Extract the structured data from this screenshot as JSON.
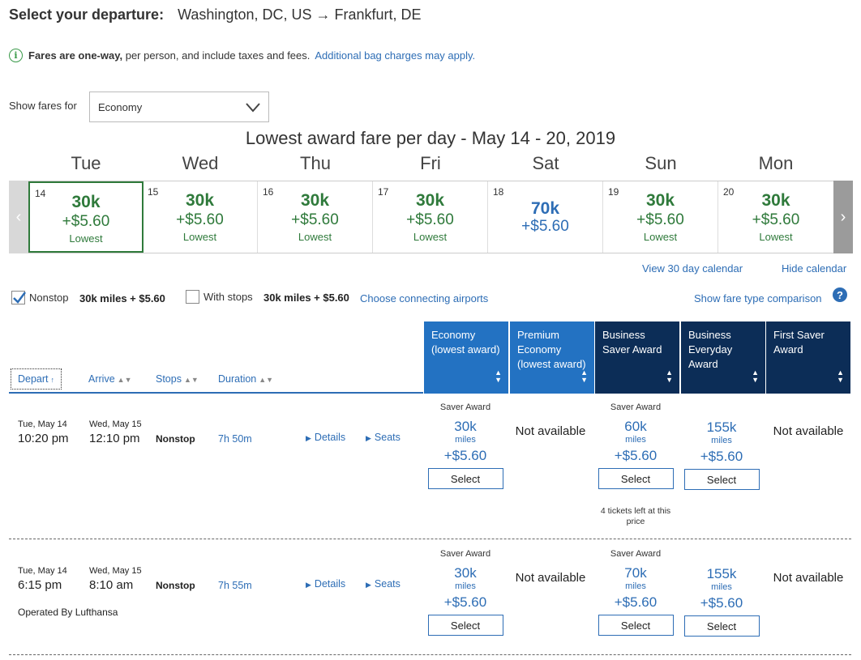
{
  "header": {
    "label": "Select your departure:",
    "route": "Washington, DC, US → Frankfurt, DE"
  },
  "notice": {
    "bold": "Fares are one-way,",
    "text": "per person, and include taxes and fees.",
    "link": "Additional bag charges may apply."
  },
  "fare_filter": {
    "label": "Show fares for",
    "value": "Economy"
  },
  "calendar": {
    "title": "Lowest award fare per day - May 14 - 20, 2019",
    "days": [
      {
        "dow": "Tue",
        "date": "14",
        "miles": "30k",
        "tax": "+$5.60",
        "note": "Lowest"
      },
      {
        "dow": "Wed",
        "date": "15",
        "miles": "30k",
        "tax": "+$5.60",
        "note": "Lowest"
      },
      {
        "dow": "Thu",
        "date": "16",
        "miles": "30k",
        "tax": "+$5.60",
        "note": "Lowest"
      },
      {
        "dow": "Fri",
        "date": "17",
        "miles": "30k",
        "tax": "+$5.60",
        "note": "Lowest"
      },
      {
        "dow": "Sat",
        "date": "18",
        "miles": "70k",
        "tax": "+$5.60",
        "note": ""
      },
      {
        "dow": "Sun",
        "date": "19",
        "miles": "30k",
        "tax": "+$5.60",
        "note": "Lowest"
      },
      {
        "dow": "Mon",
        "date": "20",
        "miles": "30k",
        "tax": "+$5.60",
        "note": "Lowest"
      }
    ],
    "view30": "View 30 day calendar",
    "hide": "Hide calendar"
  },
  "filters": {
    "nonstop_label": "Nonstop",
    "nonstop_price": "30k miles + $5.60",
    "stops_label": "With stops",
    "stops_price": "30k miles + $5.60",
    "connecting": "Choose connecting airports",
    "comparison": "Show fare type comparison"
  },
  "fare_columns": [
    "Economy (lowest award)",
    "Premium Economy (lowest award)",
    "Business Saver Award",
    "Business Everyday Award",
    "First Saver Award"
  ],
  "sort": {
    "depart": "Depart",
    "arrive": "Arrive",
    "stops": "Stops",
    "duration": "Duration"
  },
  "flights": [
    {
      "dep_date": "Tue, May 14",
      "dep_time": "10:20 pm",
      "arr_date": "Wed, May 15",
      "arr_time": "12:10 pm",
      "stops": "Nonstop",
      "duration": "7h 50m",
      "details": "Details",
      "seats": "Seats",
      "operated": "",
      "econ": {
        "tag": "Saver Award",
        "miles": "30k",
        "unit": "miles",
        "tax": "+$5.60",
        "btn": "Select"
      },
      "prem": "Not available",
      "bsaver": {
        "tag": "Saver Award",
        "miles": "60k",
        "unit": "miles",
        "tax": "+$5.60",
        "btn": "Select",
        "note": "4 tickets left at this price"
      },
      "bevery": {
        "miles": "155k",
        "unit": "miles",
        "tax": "+$5.60",
        "btn": "Select"
      },
      "first": "Not available"
    },
    {
      "dep_date": "Tue, May 14",
      "dep_time": "6:15 pm",
      "arr_date": "Wed, May 15",
      "arr_time": "8:10 am",
      "stops": "Nonstop",
      "duration": "7h 55m",
      "details": "Details",
      "seats": "Seats",
      "operated": "Operated By Lufthansa",
      "econ": {
        "tag": "Saver Award",
        "miles": "30k",
        "unit": "miles",
        "tax": "+$5.60",
        "btn": "Select"
      },
      "prem": "Not available",
      "bsaver": {
        "tag": "Saver Award",
        "miles": "70k",
        "unit": "miles",
        "tax": "+$5.60",
        "btn": "Select"
      },
      "bevery": {
        "miles": "155k",
        "unit": "miles",
        "tax": "+$5.60",
        "btn": "Select"
      },
      "first": "Not available"
    }
  ]
}
